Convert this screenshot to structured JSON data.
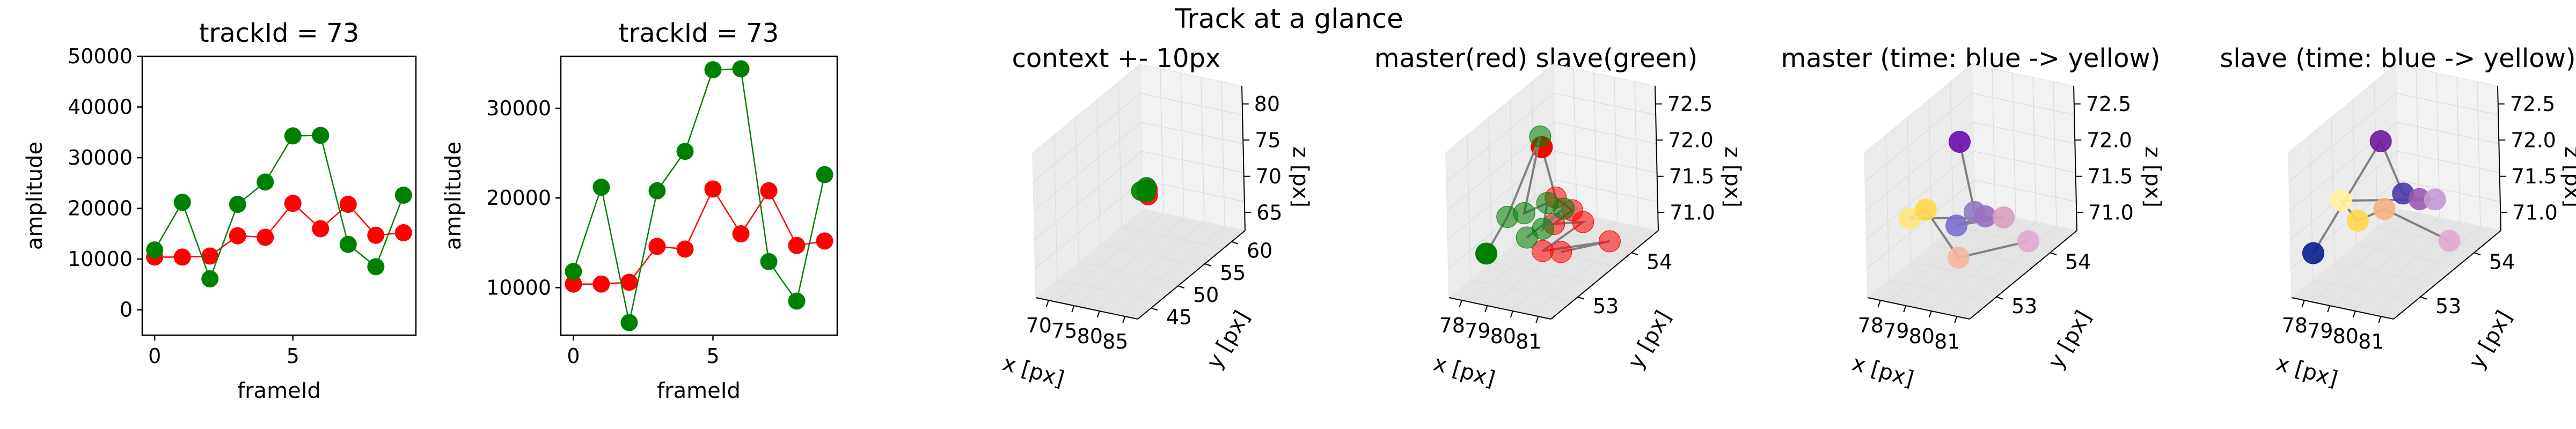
{
  "figure": {
    "suptitle": "Track at a glance"
  },
  "colors": {
    "master": "#ff0000",
    "slave": "#008000",
    "axis": "#000000",
    "pane": "#f2f2f2",
    "grid": "#dcdcdc",
    "track_line": "#808080"
  },
  "chart_data": [
    {
      "type": "line",
      "title": "trackId = 73",
      "xlabel": "frameId",
      "ylabel": "amplitude",
      "xlim": [
        -0.45,
        9.45
      ],
      "ylim": [
        -5000,
        50000
      ],
      "xticks": [
        0,
        5
      ],
      "yticks": [
        0,
        10000,
        20000,
        30000,
        40000,
        50000
      ],
      "x": [
        0,
        1,
        2,
        3,
        4,
        5,
        6,
        7,
        8,
        9
      ],
      "series": [
        {
          "color": "red",
          "values": [
            10400,
            10400,
            10600,
            14600,
            14300,
            21000,
            16000,
            20800,
            14700,
            15200
          ]
        },
        {
          "color": "green",
          "values": [
            11800,
            21200,
            6100,
            20800,
            25200,
            34300,
            34400,
            12900,
            8500,
            22600
          ]
        }
      ],
      "grid": false,
      "legend": "none"
    },
    {
      "type": "line",
      "title": "trackId = 73",
      "xlabel": "frameId",
      "ylabel": "amplitude",
      "xlim": [
        -0.45,
        9.45
      ],
      "ylim": [
        4700,
        35800
      ],
      "xticks": [
        0,
        5
      ],
      "yticks": [
        10000,
        20000,
        30000
      ],
      "x": [
        0,
        1,
        2,
        3,
        4,
        5,
        6,
        7,
        8,
        9
      ],
      "series": [
        {
          "color": "red",
          "values": [
            10400,
            10400,
            10600,
            14600,
            14300,
            21000,
            16000,
            20800,
            14700,
            15200
          ]
        },
        {
          "color": "green",
          "values": [
            11800,
            21200,
            6100,
            20800,
            25200,
            34300,
            34400,
            12900,
            8500,
            22600
          ]
        }
      ],
      "grid": false,
      "legend": "none"
    },
    {
      "type": "scatter",
      "projection": "3d",
      "title": "context +- 10px",
      "xlabel": "x [px]",
      "ylabel": "y [px]",
      "zlabel": "z [px]",
      "xticks": [
        "70",
        "75",
        "80",
        "85"
      ],
      "yticks": [
        "45",
        "50",
        "55",
        "60"
      ],
      "zticks": [
        "65",
        "70",
        "75",
        "80"
      ],
      "xlim": [
        68,
        90
      ],
      "ylim": [
        43,
        62
      ],
      "zlim": [
        62,
        82
      ],
      "points": [
        {
          "x": 79.4,
          "y": 53.5,
          "z": 71.5,
          "color": "#ff0000"
        },
        {
          "x": 79.6,
          "y": 53.6,
          "z": 71.7,
          "color": "#ff0000"
        },
        {
          "x": 80.1,
          "y": 53.2,
          "z": 71.2,
          "color": "#ff0000"
        },
        {
          "x": 78.6,
          "y": 53.2,
          "z": 71.6,
          "color": "#008000"
        },
        {
          "x": 79.2,
          "y": 53.7,
          "z": 71.9,
          "color": "#008000"
        },
        {
          "x": 79.5,
          "y": 53.4,
          "z": 71.4,
          "color": "#008000"
        }
      ],
      "grid": true
    },
    {
      "type": "scatter",
      "projection": "3d",
      "title": "master(red) slave(green)",
      "xlabel": "x [px]",
      "ylabel": "y [px]",
      "zlabel": "z [px]",
      "xticks": [
        "78",
        "79",
        "80",
        "81"
      ],
      "yticks": [
        "53",
        "54"
      ],
      "zticks": [
        "71.0",
        "71.5",
        "72.0",
        "72.5"
      ],
      "xlim": [
        77.8,
        81.4
      ],
      "ylim": [
        52.4,
        54.6
      ],
      "zlim": [
        70.8,
        72.8
      ],
      "series": [
        {
          "color": "#ff0000",
          "points": [
            {
              "x": 79.8,
              "y": 53.2,
              "z": 72.6
            },
            {
              "x": 79.9,
              "y": 53.4,
              "z": 71.8
            },
            {
              "x": 80.3,
              "y": 53.5,
              "z": 71.6
            },
            {
              "x": 80.0,
              "y": 53.3,
              "z": 71.5
            },
            {
              "x": 80.5,
              "y": 53.6,
              "z": 71.4
            },
            {
              "x": 80.1,
              "y": 53.0,
              "z": 71.3
            },
            {
              "x": 80.9,
              "y": 53.9,
              "z": 71.0
            },
            {
              "x": 80.4,
              "y": 53.2,
              "z": 71.2
            }
          ]
        },
        {
          "color": "#008000",
          "points": [
            {
              "x": 78.1,
              "y": 53.0,
              "z": 71.1
            },
            {
              "x": 78.7,
              "y": 53.1,
              "z": 71.6
            },
            {
              "x": 79.4,
              "y": 53.4,
              "z": 72.6
            },
            {
              "x": 79.3,
              "y": 53.1,
              "z": 71.7
            },
            {
              "x": 79.6,
              "y": 53.4,
              "z": 71.7
            },
            {
              "x": 79.6,
              "y": 53.3,
              "z": 71.4
            },
            {
              "x": 80.0,
              "y": 53.5,
              "z": 71.6
            },
            {
              "x": 79.2,
              "y": 53.2,
              "z": 71.3
            }
          ]
        }
      ],
      "grid": true
    },
    {
      "type": "scatter",
      "projection": "3d",
      "title": "master (time: blue -> yellow)",
      "xlabel": "x [px]",
      "ylabel": "y [px]",
      "zlabel": "z [px]",
      "xticks": [
        "78",
        "79",
        "80",
        "81"
      ],
      "yticks": [
        "53",
        "54"
      ],
      "zticks": [
        "71.0",
        "71.5",
        "72.0",
        "72.5"
      ],
      "xlim": [
        77.8,
        81.4
      ],
      "ylim": [
        52.4,
        54.6
      ],
      "zlim": [
        70.8,
        72.8
      ],
      "points": [
        {
          "x": 79.6,
          "y": 53.3,
          "z": 72.6,
          "color": "#6a0dad"
        },
        {
          "x": 79.9,
          "y": 53.4,
          "z": 71.6,
          "color": "#8e7cc3"
        },
        {
          "x": 80.1,
          "y": 53.5,
          "z": 71.5,
          "color": "#9a6fc4"
        },
        {
          "x": 79.6,
          "y": 53.2,
          "z": 71.5,
          "color": "#7b6fd0"
        },
        {
          "x": 80.4,
          "y": 53.7,
          "z": 71.4,
          "color": "#d8a0c0"
        },
        {
          "x": 78.3,
          "y": 53.0,
          "z": 71.6,
          "color": "#ffe680"
        },
        {
          "x": 78.7,
          "y": 53.1,
          "z": 71.7,
          "color": "#ffd84a"
        },
        {
          "x": 80.0,
          "y": 53.0,
          "z": 71.2,
          "color": "#f2b8a0"
        },
        {
          "x": 80.9,
          "y": 53.9,
          "z": 71.0,
          "color": "#e0a8cf"
        }
      ],
      "track_order": [
        0,
        1,
        2,
        3,
        4,
        5,
        6,
        7,
        8
      ],
      "grid": true
    },
    {
      "type": "scatter",
      "projection": "3d",
      "title": "slave (time: blue -> yellow)",
      "xlabel": "x [px]",
      "ylabel": "y [px]",
      "zlabel": "z [px]",
      "xticks": [
        "78",
        "79",
        "80",
        "81"
      ],
      "yticks": [
        "53",
        "54"
      ],
      "zticks": [
        "71.0",
        "71.5",
        "72.0",
        "72.5"
      ],
      "xlim": [
        77.8,
        81.4
      ],
      "ylim": [
        52.4,
        54.6
      ],
      "zlim": [
        70.8,
        72.8
      ],
      "points": [
        {
          "x": 77.9,
          "y": 52.8,
          "z": 71.2,
          "color": "#0a1f8f"
        },
        {
          "x": 79.5,
          "y": 53.3,
          "z": 72.6,
          "color": "#6a1b9a"
        },
        {
          "x": 79.9,
          "y": 53.5,
          "z": 71.8,
          "color": "#4b3aa8"
        },
        {
          "x": 80.3,
          "y": 53.6,
          "z": 71.7,
          "color": "#9b59b6"
        },
        {
          "x": 80.5,
          "y": 53.8,
          "z": 71.6,
          "color": "#c39bd3"
        },
        {
          "x": 78.4,
          "y": 53.1,
          "z": 71.8,
          "color": "#fff3a0"
        },
        {
          "x": 78.8,
          "y": 53.2,
          "z": 71.5,
          "color": "#ffd84a"
        },
        {
          "x": 79.4,
          "y": 53.4,
          "z": 71.6,
          "color": "#f4b183"
        },
        {
          "x": 80.8,
          "y": 53.9,
          "z": 71.0,
          "color": "#e0a8cf"
        }
      ],
      "track_order": [
        0,
        1,
        2,
        3,
        4,
        5,
        6,
        7,
        8
      ],
      "grid": true
    }
  ]
}
